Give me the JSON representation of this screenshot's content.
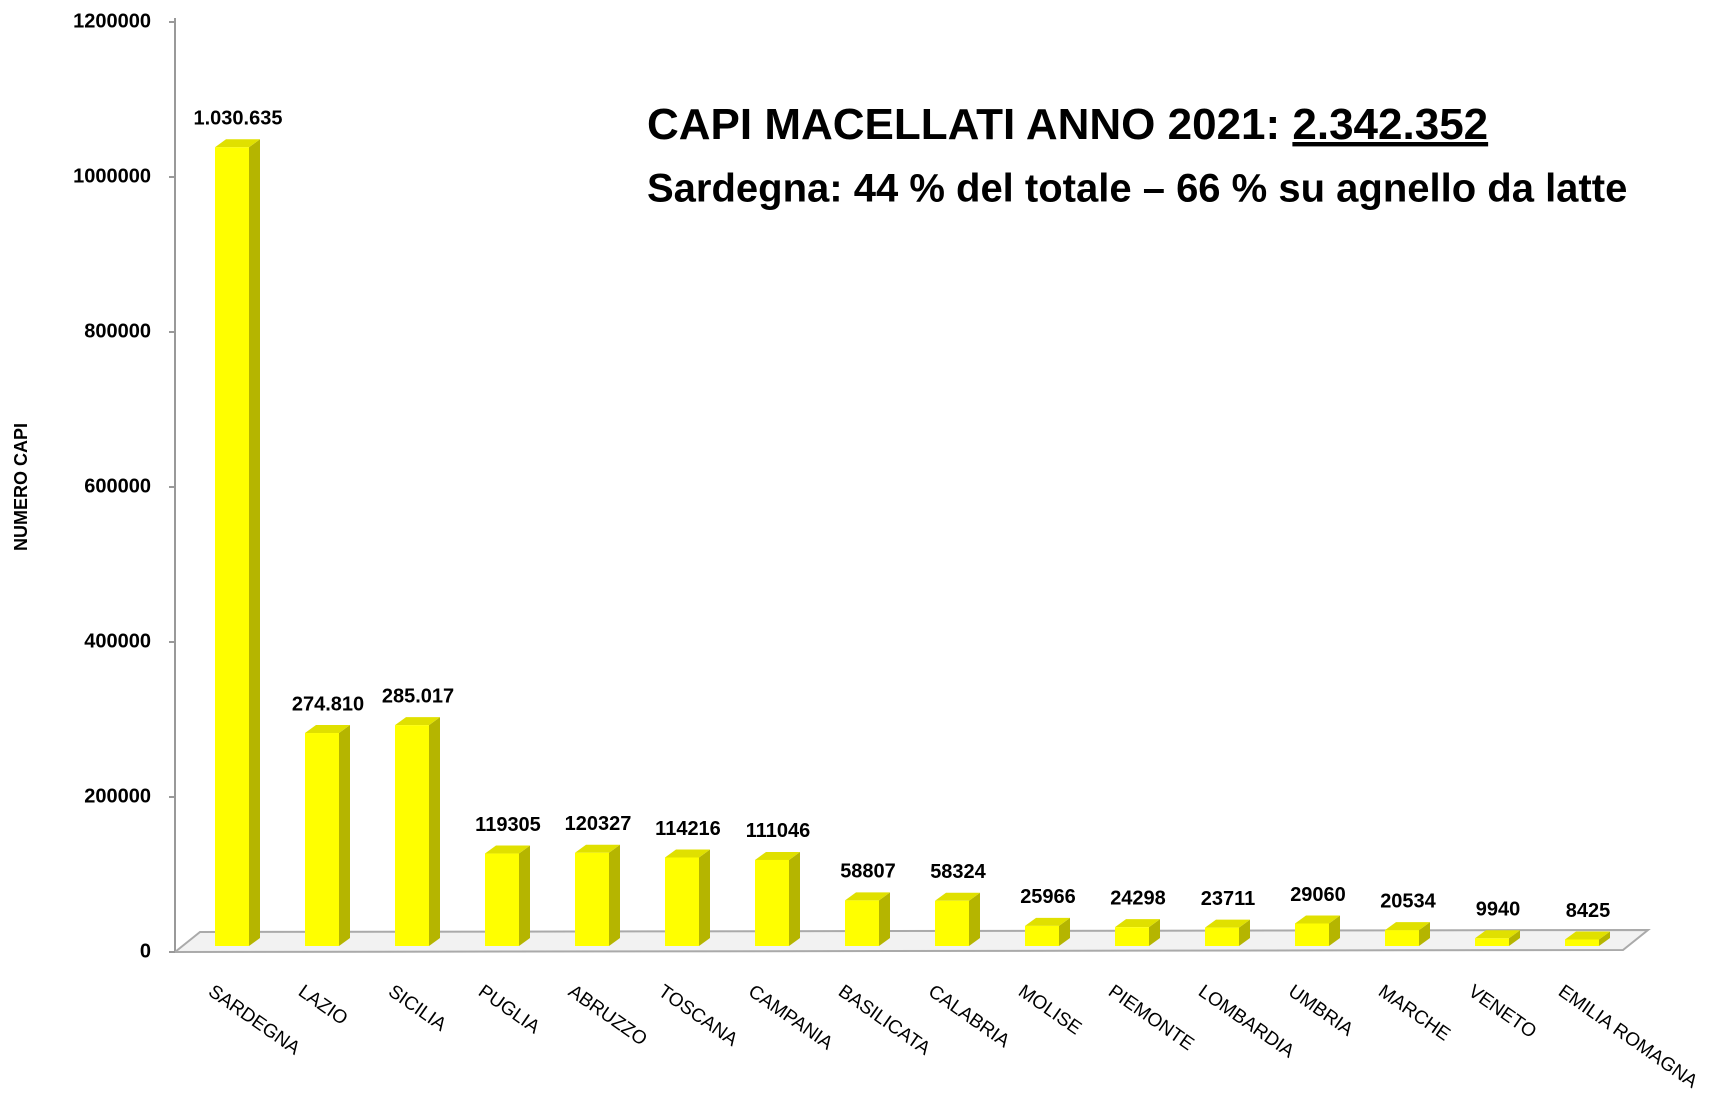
{
  "chart_data": {
    "type": "bar",
    "title": "CAPI MACELLATI ANNO 2021: ",
    "title_total": "2.342.352",
    "subtitle": "Sardegna: 44 % del totale – 66 % su agnello da latte",
    "y_label": "NUMERO CAPI",
    "categories": [
      "SARDEGNA",
      "LAZIO",
      "SICILIA",
      "PUGLIA",
      "ABRUZZO",
      "TOSCANA",
      "CAMPANIA",
      "BASILICATA",
      "CALABRIA",
      "MOLISE",
      "PIEMONTE",
      "LOMBARDIA",
      "UMBRIA",
      "MARCHE",
      "VENETO",
      "EMILIA ROMAGNA"
    ],
    "values": [
      1030635,
      274810,
      285017,
      119305,
      120327,
      114216,
      111046,
      58807,
      58324,
      25966,
      24298,
      23711,
      29060,
      20534,
      9940,
      8425
    ],
    "value_labels": [
      "1.030.635",
      "274.810",
      "285.017",
      "119305",
      "120327",
      "114216",
      "111046",
      "58807",
      "58324",
      "25966",
      "24298",
      "23711",
      "29060",
      "20534",
      "9940",
      "8425"
    ],
    "color": "#ffff00",
    "ylim": [
      0,
      1200000
    ],
    "yticks": [
      0,
      200000,
      400000,
      600000,
      800000,
      1000000,
      1200000
    ],
    "grid": false
  }
}
